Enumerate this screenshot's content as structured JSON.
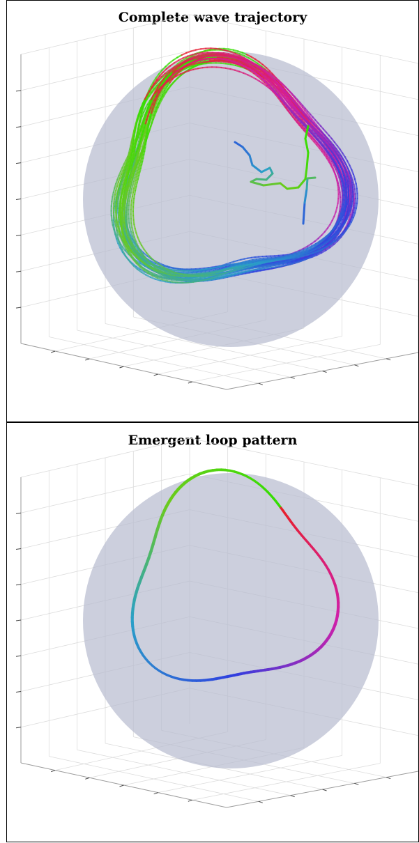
{
  "chart_data": [
    {
      "type": "line3d",
      "title": "Complete wave trajectory",
      "xlabel": "",
      "ylabel": "",
      "zlabel": "",
      "grid": true,
      "background_sphere": {
        "color": "#b9bdd0"
      },
      "colormap": [
        "#e8202a",
        "#d11fa8",
        "#2f3fe0",
        "#2aa0c8",
        "#6ccb1c",
        "#30e000"
      ],
      "description": "multiple looping trajectories"
    },
    {
      "type": "line3d",
      "title": "Emergent loop pattern",
      "xlabel": "",
      "ylabel": "",
      "zlabel": "",
      "grid": true,
      "background_sphere": {
        "color": "#b9bdd0"
      },
      "colormap": [
        "#e8202a",
        "#d11fa8",
        "#2f3fe0",
        "#2aa0c8",
        "#6ccb1c",
        "#30e000"
      ],
      "description": "single closed loop"
    }
  ]
}
